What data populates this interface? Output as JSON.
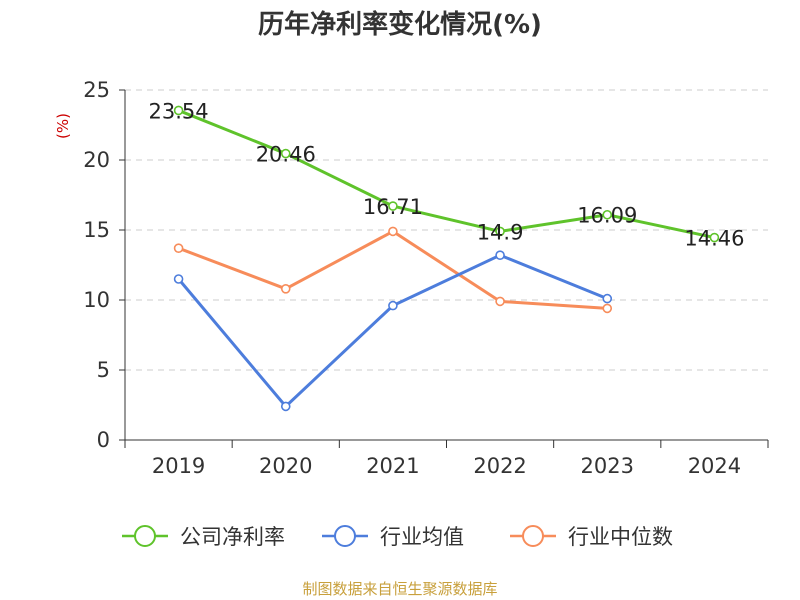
{
  "chart_data": {
    "type": "line",
    "title": "历年净利率变化情况(%)",
    "ylabel": "(%)",
    "xlabel": "",
    "categories": [
      "2019",
      "2020",
      "2021",
      "2022",
      "2023",
      "2024"
    ],
    "ylim": [
      0,
      25
    ],
    "yticks": [
      0,
      5,
      10,
      15,
      20,
      25
    ],
    "grid": true,
    "legend_position": "bottom",
    "series": [
      {
        "name": "公司净利率",
        "color": "#5fc32b",
        "values": [
          23.54,
          20.46,
          16.71,
          14.9,
          16.09,
          14.46
        ],
        "labels": [
          "23.54",
          "20.46",
          "16.71",
          "14.9",
          "16.09",
          "14.46"
        ]
      },
      {
        "name": "行业均值",
        "color": "#4d7ddc",
        "values": [
          11.5,
          2.4,
          9.6,
          13.2,
          10.1,
          null
        ]
      },
      {
        "name": "行业中位数",
        "color": "#f78c5a",
        "values": [
          13.7,
          10.8,
          14.9,
          9.9,
          9.4,
          null
        ]
      }
    ]
  },
  "footer": {
    "source": "制图数据来自恒生聚源数据库"
  }
}
